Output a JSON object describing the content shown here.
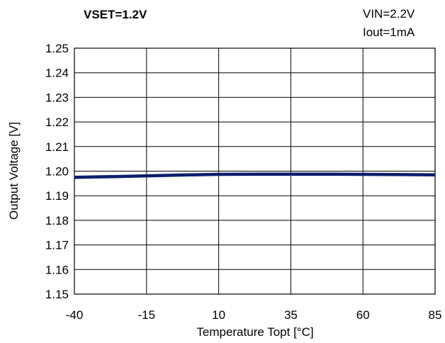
{
  "chart_data": {
    "type": "line",
    "title": "VSET=1.2V",
    "annotations": [
      "VIN=2.2V",
      "Iout=1mA"
    ],
    "xlabel": "Temperature Topt [°C]",
    "ylabel": "Output Voltage [V]",
    "xlim": [
      -40,
      85
    ],
    "ylim": [
      1.15,
      1.25
    ],
    "xticks": [
      -40,
      -15,
      10,
      35,
      60,
      85
    ],
    "xtick_labels": [
      "-40",
      "-15",
      "10",
      "35",
      "60",
      "85"
    ],
    "yticks": [
      1.15,
      1.16,
      1.17,
      1.18,
      1.19,
      1.2,
      1.21,
      1.22,
      1.23,
      1.24,
      1.25
    ],
    "ytick_labels": [
      "1.15",
      "1.16",
      "1.17",
      "1.18",
      "1.19",
      "1.20",
      "1.21",
      "1.22",
      "1.23",
      "1.24",
      "1.25"
    ],
    "grid": true,
    "series": [
      {
        "color": "#0a1e6e",
        "x": [
          -40,
          -25,
          -15,
          0,
          10,
          25,
          35,
          50,
          60,
          75,
          85
        ],
        "y": [
          1.1975,
          1.1978,
          1.1981,
          1.1985,
          1.1987,
          1.1988,
          1.1988,
          1.1988,
          1.1987,
          1.1986,
          1.1985
        ]
      }
    ]
  }
}
